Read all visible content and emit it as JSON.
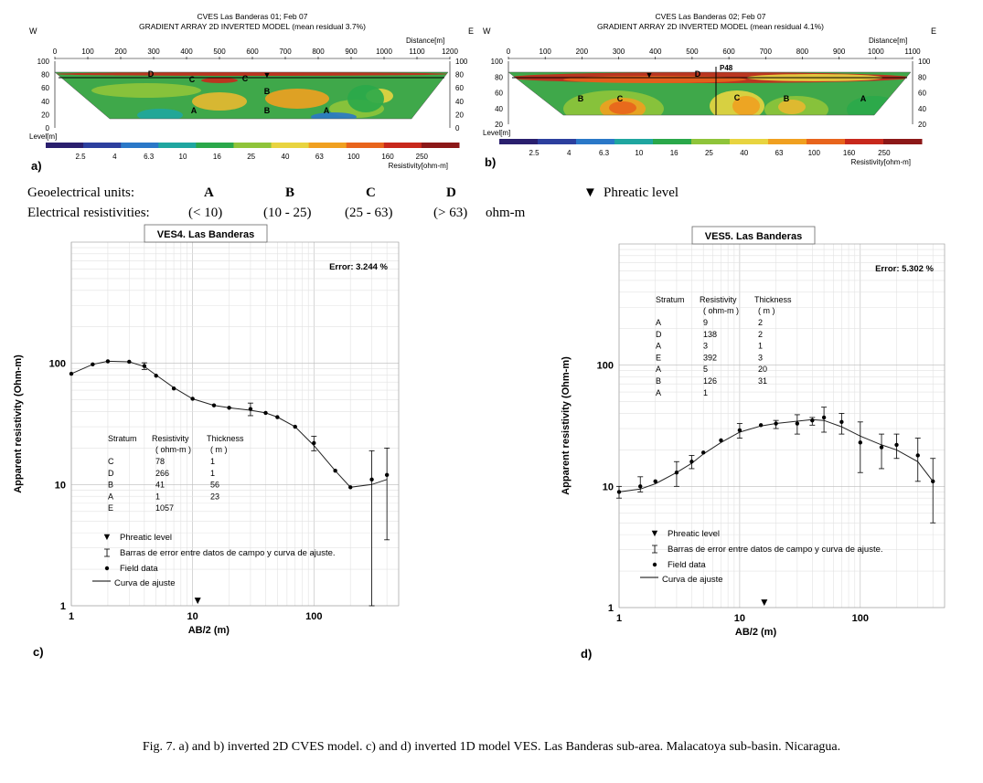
{
  "panels_2d": [
    {
      "id": "a",
      "letter": "a)",
      "title": "CVES Las Banderas 01; Feb 07",
      "subtitle": "GRADIENT ARRAY 2D INVERTED MODEL (mean residual 3.7%)",
      "west": "W",
      "east": "E",
      "distance_label": "Distance[m]",
      "level_label": "Level[m]",
      "resistivity_label": "Resistivity[ohm-m]",
      "x_ticks": [
        "0",
        "100",
        "200",
        "300",
        "400",
        "500",
        "600",
        "700",
        "800",
        "900",
        "1000",
        "1100",
        "1200"
      ],
      "y_ticks": [
        "100",
        "80",
        "60",
        "40",
        "20",
        "0"
      ],
      "unit_labels": [
        "D",
        "C",
        "C",
        "B",
        "A",
        "B",
        "A"
      ],
      "phreatic_marker": "▼"
    },
    {
      "id": "b",
      "letter": "b)",
      "title": "CVES Las Banderas 02; Feb 07",
      "subtitle": "GRADIENT ARRAY 2D INVERTED MODEL (mean residual 4.1%)",
      "west": "W",
      "east": "E",
      "distance_label": "Distance[m]",
      "level_label": "Level[m]",
      "resistivity_label": "Resistivity[ohm-m]",
      "x_ticks": [
        "0",
        "100",
        "200",
        "300",
        "400",
        "500",
        "600",
        "700",
        "800",
        "900",
        "1000",
        "1100"
      ],
      "y_ticks": [
        "100",
        "80",
        "60",
        "40",
        "20"
      ],
      "unit_labels": [
        "D",
        "B",
        "C",
        "C",
        "B",
        "A"
      ],
      "well_label": "P48",
      "phreatic_marker": "▼"
    }
  ],
  "color_scale_ticks": [
    "2.5",
    "4",
    "6.3",
    "10",
    "16",
    "25",
    "40",
    "63",
    "100",
    "160",
    "250"
  ],
  "color_scale_colors": [
    "#2a1f6e",
    "#2c3f9e",
    "#2a78c8",
    "#1fa6a0",
    "#2aa84a",
    "#8fc43a",
    "#e8d440",
    "#f0a020",
    "#e8641c",
    "#c8281c",
    "#8c1818"
  ],
  "units_legend": {
    "row1_label": "Geoelectrical units:",
    "units": [
      "A",
      "B",
      "C",
      "D"
    ],
    "phreatic_label": "Phreatic level",
    "phreatic_symbol": "▼",
    "row2_label": "Electrical resistivities:",
    "ranges": [
      "(< 10)",
      "(10 - 25)",
      "(25 - 63)",
      "(> 63)"
    ],
    "unit": "ohm-m"
  },
  "chart_data": [
    {
      "id": "c",
      "letter": "c)",
      "type": "line",
      "title": "VES4. Las Banderas",
      "error_text": "Error: 3.244 %",
      "xlabel": "AB/2 (m)",
      "ylabel": "Apparent resistivity (Ohm-m)",
      "xscale": "log",
      "yscale": "log",
      "xlim": [
        1,
        500
      ],
      "ylim": [
        1,
        1000
      ],
      "x_tick_labels": [
        "1",
        "10",
        "100"
      ],
      "y_tick_labels": [
        "1",
        "10",
        "100"
      ],
      "phreatic_x": 11,
      "field_data": {
        "x": [
          1,
          1.5,
          2,
          3,
          4,
          5,
          7,
          10,
          15,
          20,
          30,
          40,
          50,
          70,
          100,
          150,
          200,
          300,
          400
        ],
        "y": [
          82,
          98,
          104,
          103,
          95,
          79,
          62,
          51,
          45,
          43,
          42,
          39,
          36,
          30,
          22,
          13,
          9.5,
          11,
          12
        ],
        "err_low": [
          null,
          null,
          null,
          null,
          89,
          null,
          null,
          null,
          null,
          null,
          37,
          null,
          null,
          null,
          19,
          null,
          null,
          1,
          3.5
        ],
        "err_high": [
          null,
          null,
          null,
          null,
          101,
          null,
          null,
          null,
          null,
          null,
          47,
          null,
          null,
          null,
          25,
          null,
          null,
          19,
          20
        ]
      },
      "fitted_curve": {
        "x": [
          1,
          1.5,
          2,
          3,
          4,
          5,
          7,
          10,
          15,
          20,
          30,
          40,
          50,
          70,
          100,
          150,
          200,
          300,
          400
        ],
        "y": [
          82,
          98,
          104,
          103,
          94,
          80,
          63,
          51,
          45,
          43,
          41,
          39,
          36,
          30,
          21,
          13,
          9.5,
          10,
          11
        ]
      },
      "layers_table": {
        "headers": [
          "Stratum",
          "Resistivity",
          "Thickness"
        ],
        "subheaders": [
          "",
          "( ohm-m )",
          "( m )"
        ],
        "rows": [
          [
            "C",
            "78",
            "1"
          ],
          [
            "D",
            "266",
            "1"
          ],
          [
            "B",
            "41",
            "56"
          ],
          [
            "A",
            "1",
            "23"
          ],
          [
            "E",
            "1057",
            ""
          ]
        ]
      },
      "legend": {
        "phreatic": "Phreatic level",
        "error_bars": "Barras de error entre datos de campo y curva de ajuste.",
        "field_data": "Field data",
        "fit": "Curva de ajuste"
      }
    },
    {
      "id": "d",
      "letter": "d)",
      "type": "line",
      "title": "VES5. Las Banderas",
      "error_text": "Error: 5.302 %",
      "xlabel": "AB/2 (m)",
      "ylabel": "Apparent resistivity (Ohm-m)",
      "xscale": "log",
      "yscale": "log",
      "xlim": [
        1,
        500
      ],
      "ylim": [
        1,
        1000
      ],
      "x_tick_labels": [
        "1",
        "10",
        "100"
      ],
      "y_tick_labels": [
        "1",
        "10",
        "100"
      ],
      "phreatic_x": 16,
      "field_data": {
        "x": [
          1,
          1.5,
          2,
          3,
          4,
          5,
          7,
          10,
          15,
          20,
          30,
          40,
          50,
          70,
          100,
          150,
          200,
          300,
          400
        ],
        "y": [
          9,
          10,
          11,
          13,
          16,
          19,
          24,
          29,
          32,
          33,
          33,
          35,
          37,
          34,
          23,
          21,
          22,
          18,
          11
        ],
        "err_low": [
          8,
          9,
          null,
          10,
          14,
          null,
          null,
          25,
          null,
          30,
          27,
          32,
          28,
          27,
          13,
          14,
          17,
          11,
          5
        ],
        "err_high": [
          10,
          12,
          13,
          16,
          18,
          null,
          null,
          33,
          null,
          35,
          39,
          37,
          45,
          40,
          34,
          27,
          27,
          25,
          17
        ]
      },
      "fitted_curve": {
        "x": [
          1,
          1.5,
          2,
          3,
          4,
          5,
          7,
          10,
          15,
          20,
          30,
          40,
          50,
          70,
          100,
          150,
          200,
          300,
          400
        ],
        "y": [
          9,
          9.5,
          10.5,
          13,
          15.5,
          18.5,
          23,
          28,
          31.5,
          33,
          34.5,
          35.5,
          35,
          31,
          26,
          22,
          20,
          16,
          11
        ]
      },
      "layers_table": {
        "headers": [
          "Stratum",
          "Resistivity",
          "Thickness"
        ],
        "subheaders": [
          "",
          "( ohm-m )",
          "( m )"
        ],
        "rows": [
          [
            "A",
            "9",
            "2"
          ],
          [
            "D",
            "138",
            "2"
          ],
          [
            "A",
            "3",
            "1"
          ],
          [
            "E",
            "392",
            "3"
          ],
          [
            "A",
            "5",
            "20"
          ],
          [
            "B",
            "126",
            "31"
          ],
          [
            "A",
            "1",
            ""
          ]
        ]
      },
      "legend": {
        "phreatic": "Phreatic level",
        "error_bars": "Barras de error entre datos de campo y curva de ajuste.",
        "field_data": "Field data",
        "fit": "Curva de ajuste"
      }
    }
  ],
  "caption": "Fig. 7. a) and b) inverted 2D CVES model. c) and d) inverted 1D model VES. Las Banderas sub-area. Malacatoya sub-basin. Nicaragua."
}
